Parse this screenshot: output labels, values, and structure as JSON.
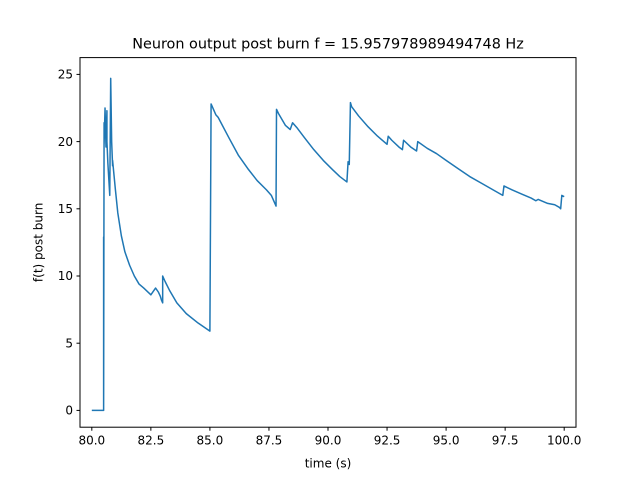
{
  "chart_data": {
    "type": "line",
    "title": "Neuron output post burn f = 15.957978989494748 Hz",
    "xlabel": "time (s)",
    "ylabel": "f(t) post burn",
    "xlim": [
      79.5,
      100.5
    ],
    "ylim": [
      -1.25,
      26.25
    ],
    "xticks": [
      80.0,
      82.5,
      85.0,
      87.5,
      90.0,
      92.5,
      95.0,
      97.5,
      100.0
    ],
    "xtick_labels": [
      "80.0",
      "82.5",
      "85.0",
      "87.5",
      "90.0",
      "92.5",
      "95.0",
      "97.5",
      "100.0"
    ],
    "yticks": [
      0,
      5,
      10,
      15,
      20,
      25
    ],
    "ytick_labels": [
      "0",
      "5",
      "10",
      "15",
      "20",
      "25"
    ],
    "grid": false,
    "series": [
      {
        "color": "#1f77b4",
        "x": [
          80.0,
          80.5,
          80.5,
          80.5,
          80.5,
          80.5,
          80.52,
          80.52,
          80.56,
          80.6,
          80.64,
          80.64,
          80.68,
          80.72,
          80.76,
          80.8,
          80.84,
          80.88,
          80.88,
          81.0,
          81.1,
          81.25,
          81.4,
          81.6,
          81.8,
          82.0,
          82.2,
          82.5,
          82.7,
          82.82,
          82.9,
          82.95,
          83.0,
          83.0,
          83.1,
          83.3,
          83.6,
          84.0,
          84.5,
          85.0,
          85.05,
          85.15,
          85.25,
          85.35,
          85.5,
          85.8,
          86.2,
          86.6,
          87.0,
          87.4,
          87.6,
          87.8,
          87.82,
          87.9,
          88.2,
          88.4,
          88.5,
          88.7,
          89.0,
          89.4,
          89.8,
          90.2,
          90.5,
          90.8,
          90.85,
          90.9,
          90.95,
          91.0,
          91.3,
          91.7,
          92.1,
          92.5,
          92.55,
          92.7,
          93.0,
          93.15,
          93.2,
          93.5,
          93.75,
          93.8,
          94.2,
          94.6,
          95.0,
          95.5,
          96.0,
          96.5,
          97.0,
          97.4,
          97.45,
          97.8,
          98.2,
          98.6,
          98.8,
          98.9,
          99.3,
          99.6,
          99.8,
          99.85,
          99.9,
          100.0
        ],
        "y": [
          0.0,
          0.0,
          12.7,
          12.9,
          12.7,
          0.0,
          21.4,
          19.8,
          22.5,
          19.6,
          22.3,
          20.0,
          18.4,
          17.2,
          16.0,
          24.7,
          20.0,
          18.2,
          18.6,
          16.4,
          14.7,
          13.0,
          11.8,
          10.8,
          10.0,
          9.4,
          9.1,
          8.6,
          9.1,
          8.8,
          8.5,
          8.2,
          8.0,
          10.0,
          9.6,
          8.9,
          8.0,
          7.2,
          6.5,
          5.9,
          22.8,
          22.4,
          22.0,
          21.8,
          21.3,
          20.3,
          19.0,
          18.0,
          17.1,
          16.4,
          16.0,
          15.2,
          22.4,
          22.1,
          21.2,
          20.9,
          21.4,
          21.0,
          20.3,
          19.4,
          18.6,
          17.9,
          17.4,
          17.0,
          18.5,
          18.3,
          22.9,
          22.6,
          21.9,
          21.1,
          20.4,
          19.8,
          20.4,
          20.1,
          19.6,
          19.4,
          20.1,
          19.6,
          19.3,
          20.0,
          19.5,
          19.1,
          18.6,
          18.0,
          17.4,
          16.9,
          16.4,
          16.0,
          16.7,
          16.4,
          16.1,
          15.8,
          15.6,
          15.7,
          15.4,
          15.3,
          15.1,
          15.0,
          16.0,
          15.9
        ]
      }
    ]
  }
}
